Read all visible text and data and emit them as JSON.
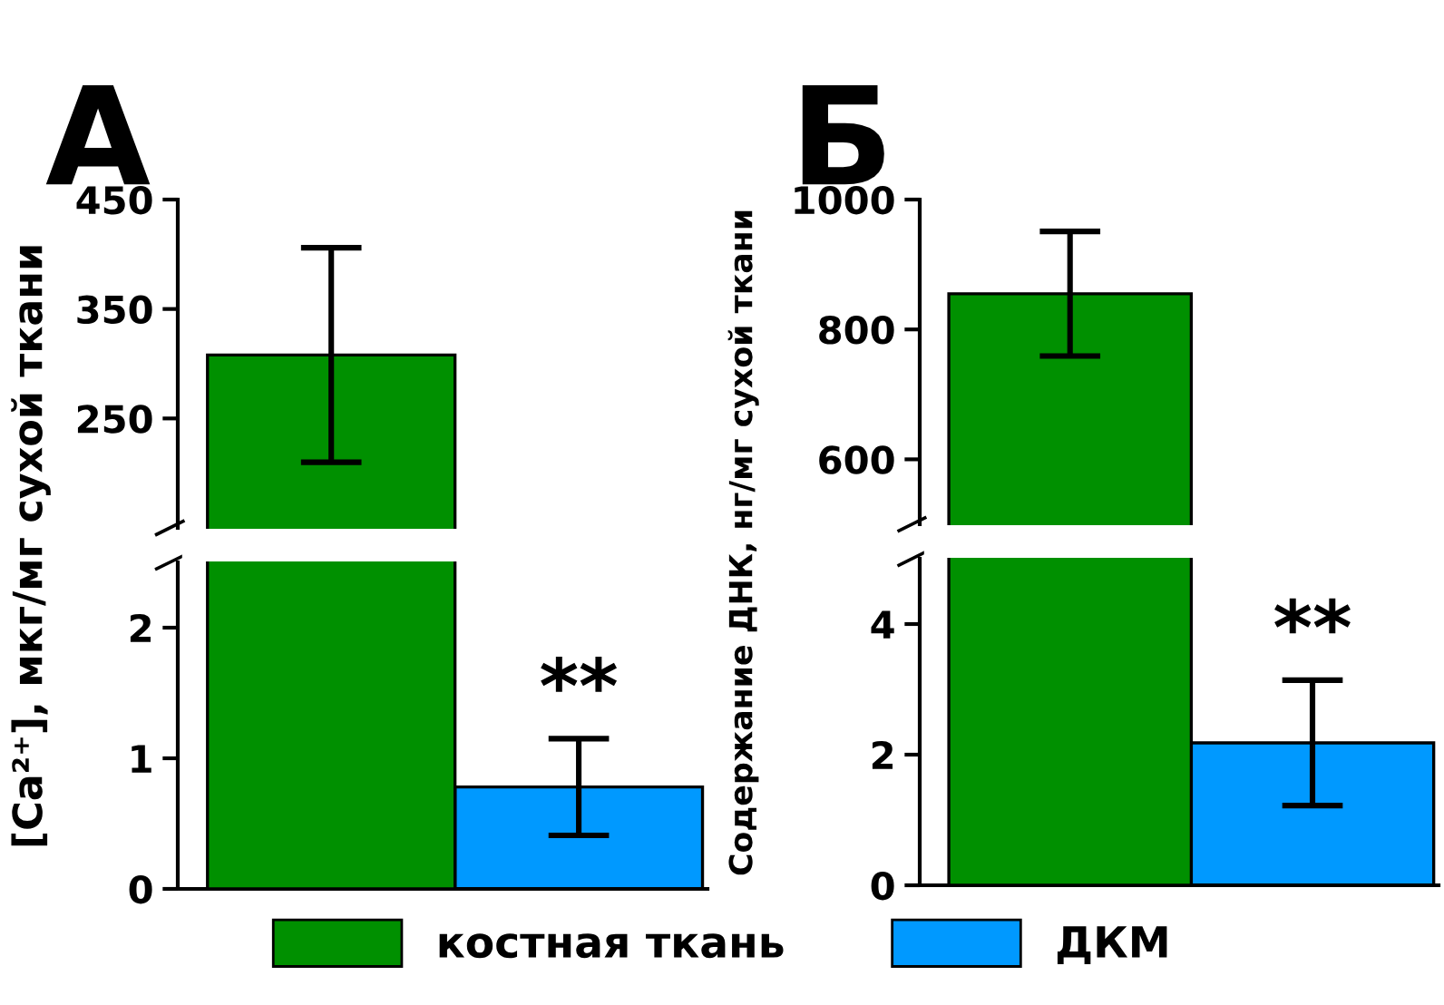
{
  "chart_data": [
    {
      "type": "bar",
      "ylabel": "[Ca²⁺], мкг/мг сухой ткани",
      "categories": [
        null,
        null
      ],
      "ylim": [
        0,
        2.5
      ],
      "yticks": [
        0,
        1,
        2
      ],
      "tick_labels": "y",
      "legend": "bottom",
      "annotations": [
        "**"
      ],
      "series": [
        {
          "name": "ДКМ",
          "color": "#0099ff",
          "values": [
            null,
            0.78
          ],
          "errors": [
            null,
            0.37
          ]
        }
      ]
    },
    {
      "type": "bar",
      "ylabel": "Содержание ДНК, нг/мг сухой ткани",
      "categories": [
        null,
        null
      ],
      "ylim": [
        0,
        5
      ],
      "yticks": [
        0,
        2,
        4
      ],
      "tick_labels": "y",
      "legend": "bottom",
      "annotations": [
        "**"
      ],
      "series": [
        {
          "name": "ДКМ",
          "color": "#0099ff",
          "values": [
            null,
            2.18
          ],
          "errors": [
            null,
            0.96
          ]
        }
      ]
    },
    {
      "type": "bar",
      "title": "А",
      "categories": [
        null,
        null
      ],
      "ylim": [
        150,
        450
      ],
      "yticks": [
        250,
        350,
        450
      ],
      "tick_labels": "y",
      "series": [
        {
          "name": "костная ткань",
          "color": "#009000",
          "values": [
            308,
            null
          ],
          "errors": [
            98,
            null
          ]
        }
      ]
    },
    {
      "type": "bar",
      "title": "Б",
      "categories": [
        null,
        null
      ],
      "ylim": [
        500,
        1000
      ],
      "yticks": [
        600,
        800,
        1000
      ],
      "tick_labels": "y",
      "series": [
        {
          "color": "#009000",
          "values": [
            855,
            null
          ],
          "errors": [
            96,
            null
          ]
        }
      ]
    }
  ]
}
